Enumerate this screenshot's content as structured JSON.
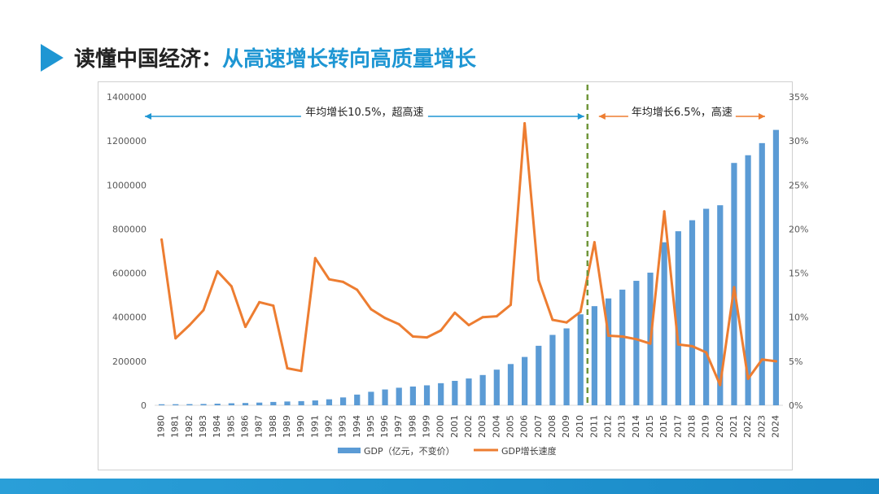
{
  "header": {
    "title_dark": "读懂中国经济：",
    "title_blue": "从高速增长转向高质量增长"
  },
  "colors": {
    "bar": "#5b9bd5",
    "line": "#ed7d31",
    "accent": "#1e96d3",
    "divider": "#70963a"
  },
  "chart_data": {
    "type": "bar+line",
    "categories": [
      "1980",
      "1981",
      "1982",
      "1983",
      "1984",
      "1985",
      "1986",
      "1987",
      "1988",
      "1989",
      "1990",
      "1991",
      "1992",
      "1993",
      "1994",
      "1995",
      "1996",
      "1997",
      "1998",
      "1999",
      "2000",
      "2001",
      "2002",
      "2003",
      "2004",
      "2005",
      "2006",
      "2007",
      "2008",
      "2009",
      "2010",
      "2011",
      "2012",
      "2013",
      "2014",
      "2015",
      "2016",
      "2017",
      "2018",
      "2019",
      "2020",
      "2021",
      "2022",
      "2023",
      "2024"
    ],
    "series": [
      {
        "name": "GDP（亿元，不变价）",
        "type": "bar",
        "axis": "left",
        "values": [
          4600,
          4900,
          5300,
          6000,
          7300,
          9100,
          10400,
          12200,
          15200,
          17200,
          18900,
          22000,
          27200,
          35700,
          48600,
          61300,
          71800,
          79700,
          85200,
          90600,
          100300,
          110900,
          121700,
          137400,
          161800,
          187300,
          219400,
          270100,
          319500,
          349100,
          413000,
          450000,
          485000,
          525000,
          565000,
          602000,
          740000,
          790000,
          840000,
          892000,
          908000,
          1100000,
          1135000,
          1190000,
          1250000
        ]
      },
      {
        "name": "GDP增长速度",
        "type": "line",
        "axis": "right",
        "values": [
          18.8,
          7.6,
          9.1,
          10.8,
          15.2,
          13.5,
          8.9,
          11.7,
          11.3,
          4.2,
          3.9,
          16.7,
          14.3,
          14.0,
          13.1,
          10.9,
          9.9,
          9.2,
          7.8,
          7.7,
          8.5,
          10.5,
          9.1,
          10.0,
          10.1,
          11.4,
          32.0,
          14.2,
          9.7,
          9.4,
          10.6,
          18.5,
          7.9,
          7.8,
          7.5,
          7.0,
          22.0,
          6.9,
          6.7,
          6.0,
          2.3,
          13.4,
          3.0,
          5.2,
          5.0
        ]
      }
    ],
    "y_left": {
      "min": 0,
      "max": 1400000,
      "ticks": [
        "0",
        "200000",
        "400000",
        "600000",
        "800000",
        "1000000",
        "1200000",
        "1400000"
      ]
    },
    "y_right": {
      "min": 0,
      "max": 35,
      "ticks": [
        "0%",
        "5%",
        "10%",
        "15%",
        "20%",
        "25%",
        "30%",
        "35%"
      ]
    },
    "annotations": [
      {
        "text": "年均增长10.5%，超高速",
        "from": "1980",
        "to": "2010"
      },
      {
        "text": "年均增长6.5%，高速",
        "from": "2011",
        "to": "2024"
      }
    ],
    "divider_after": "2010",
    "legend": {
      "position": "bottom",
      "items": [
        "GDP（亿元，不变价）",
        "GDP增长速度"
      ]
    },
    "grid": false
  }
}
